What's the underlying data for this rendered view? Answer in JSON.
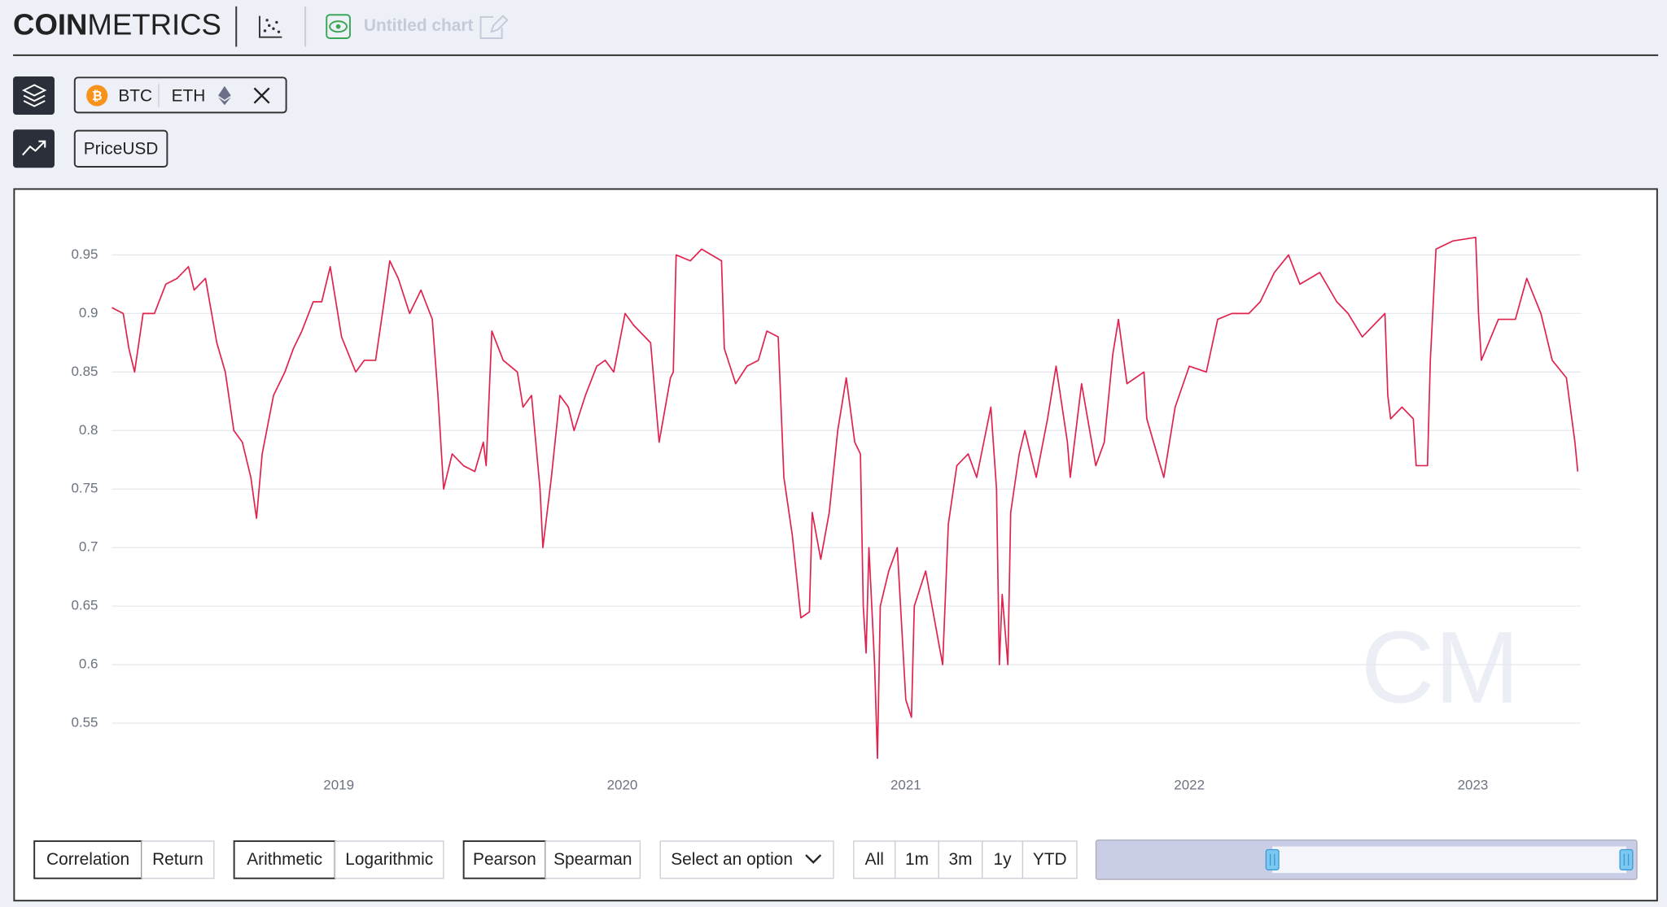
{
  "header": {
    "logo": {
      "bold": "COIN",
      "light": "METRICS"
    },
    "chart_name": "Untitled chart"
  },
  "assets": [
    "BTC",
    "ETH"
  ],
  "metric": "PriceUSD",
  "chart_data": {
    "type": "line",
    "color": "#e0234e",
    "grid": true,
    "watermark": "CM",
    "xlim": [
      2018.2,
      2023.38
    ],
    "xticks": [
      2019,
      2020,
      2021,
      2022,
      2023
    ],
    "ylim": [
      0.51,
      0.98
    ],
    "yticks": [
      0.95,
      0.9,
      0.85,
      0.8,
      0.75,
      0.7,
      0.65,
      0.6,
      0.55
    ],
    "x": [
      2018.2,
      2018.24,
      2018.26,
      2018.28,
      2018.31,
      2018.35,
      2018.39,
      2018.43,
      2018.47,
      2018.49,
      2018.53,
      2018.57,
      2018.6,
      2018.63,
      2018.66,
      2018.69,
      2018.71,
      2018.73,
      2018.77,
      2018.81,
      2018.84,
      2018.87,
      2018.91,
      2018.94,
      2018.97,
      2019.01,
      2019.06,
      2019.09,
      2019.13,
      2019.16,
      2019.18,
      2019.21,
      2019.25,
      2019.29,
      2019.33,
      2019.35,
      2019.37,
      2019.4,
      2019.44,
      2019.48,
      2019.51,
      2019.52,
      2019.54,
      2019.58,
      2019.63,
      2019.65,
      2019.68,
      2019.71,
      2019.72,
      2019.75,
      2019.78,
      2019.81,
      2019.83,
      2019.87,
      2019.91,
      2019.94,
      2019.97,
      2020.01,
      2020.04,
      2020.1,
      2020.13,
      2020.17,
      2020.18,
      2020.19,
      2020.24,
      2020.28,
      2020.35,
      2020.36,
      2020.4,
      2020.44,
      2020.48,
      2020.51,
      2020.55,
      2020.57,
      2020.6,
      2020.63,
      2020.66,
      2020.67,
      2020.7,
      2020.73,
      2020.76,
      2020.79,
      2020.82,
      2020.84,
      2020.85,
      2020.86,
      2020.87,
      2020.89,
      2020.9,
      2020.91,
      2020.94,
      2020.97,
      2021.0,
      2021.02,
      2021.03,
      2021.07,
      2021.1,
      2021.13,
      2021.15,
      2021.18,
      2021.22,
      2021.25,
      2021.3,
      2021.32,
      2021.33,
      2021.34,
      2021.36,
      2021.37,
      2021.4,
      2021.42,
      2021.46,
      2021.5,
      2021.53,
      2021.57,
      2021.58,
      2021.62,
      2021.67,
      2021.7,
      2021.73,
      2021.75,
      2021.78,
      2021.84,
      2021.85,
      2021.91,
      2021.95,
      2022.0,
      2022.06,
      2022.1,
      2022.15,
      2022.21,
      2022.25,
      2022.3,
      2022.35,
      2022.39,
      2022.46,
      2022.52,
      2022.56,
      2022.61,
      2022.69,
      2022.7,
      2022.71,
      2022.75,
      2022.79,
      2022.8,
      2022.84,
      2022.85,
      2022.87,
      2022.93,
      2023.01,
      2023.02,
      2023.03,
      2023.09,
      2023.15,
      2023.19,
      2023.24,
      2023.28,
      2023.33,
      2023.36,
      2023.37
    ],
    "values": [
      0.905,
      0.9,
      0.87,
      0.85,
      0.9,
      0.9,
      0.925,
      0.93,
      0.94,
      0.92,
      0.93,
      0.875,
      0.85,
      0.8,
      0.79,
      0.76,
      0.725,
      0.78,
      0.83,
      0.85,
      0.87,
      0.885,
      0.91,
      0.91,
      0.94,
      0.88,
      0.85,
      0.86,
      0.86,
      0.91,
      0.945,
      0.93,
      0.9,
      0.92,
      0.895,
      0.83,
      0.75,
      0.78,
      0.77,
      0.765,
      0.79,
      0.77,
      0.885,
      0.86,
      0.85,
      0.82,
      0.83,
      0.75,
      0.7,
      0.76,
      0.83,
      0.82,
      0.8,
      0.83,
      0.855,
      0.86,
      0.85,
      0.9,
      0.89,
      0.875,
      0.79,
      0.845,
      0.85,
      0.95,
      0.945,
      0.955,
      0.945,
      0.87,
      0.84,
      0.855,
      0.86,
      0.885,
      0.88,
      0.76,
      0.71,
      0.64,
      0.645,
      0.73,
      0.69,
      0.73,
      0.8,
      0.845,
      0.79,
      0.78,
      0.65,
      0.61,
      0.7,
      0.6,
      0.52,
      0.65,
      0.68,
      0.7,
      0.57,
      0.555,
      0.65,
      0.68,
      0.64,
      0.6,
      0.72,
      0.77,
      0.78,
      0.76,
      0.82,
      0.75,
      0.6,
      0.66,
      0.6,
      0.73,
      0.78,
      0.8,
      0.76,
      0.81,
      0.855,
      0.79,
      0.76,
      0.84,
      0.77,
      0.79,
      0.865,
      0.895,
      0.84,
      0.85,
      0.81,
      0.76,
      0.82,
      0.855,
      0.85,
      0.895,
      0.9,
      0.9,
      0.91,
      0.935,
      0.95,
      0.925,
      0.935,
      0.91,
      0.9,
      0.88,
      0.9,
      0.83,
      0.81,
      0.82,
      0.81,
      0.77,
      0.77,
      0.86,
      0.955,
      0.962,
      0.965,
      0.9,
      0.86,
      0.895,
      0.895,
      0.93,
      0.9,
      0.86,
      0.845,
      0.79,
      0.765
    ]
  },
  "controls": {
    "mode": [
      "Correlation",
      "Return"
    ],
    "scale": [
      "Arithmetic",
      "Logarithmic"
    ],
    "method": [
      "Pearson",
      "Spearman"
    ],
    "select": "Select an option",
    "ranges": [
      "All",
      "1m",
      "3m",
      "1y",
      "YTD"
    ]
  }
}
